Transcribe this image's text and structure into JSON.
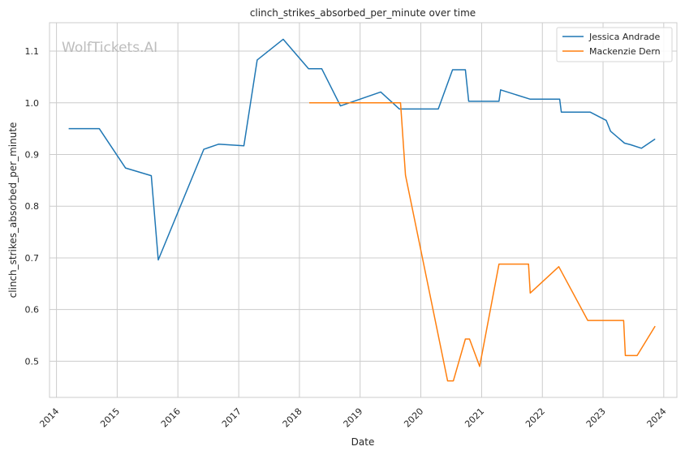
{
  "chart_data": {
    "type": "line",
    "title": "clinch_strikes_absorbed_per_minute over time",
    "xlabel": "Date",
    "ylabel": "clinch_strikes_absorbed_per_minute",
    "watermark": "WolfTickets.AI",
    "x_ticks": [
      "2014",
      "2015",
      "2016",
      "2017",
      "2018",
      "2019",
      "2020",
      "2021",
      "2022",
      "2023",
      "2024"
    ],
    "y_ticks": [
      "0.5",
      "0.6",
      "0.7",
      "0.8",
      "0.9",
      "1.0",
      "1.1"
    ],
    "xlim": [
      "2013-11-20",
      "2024-03-20"
    ],
    "ylim": [
      0.43,
      1.155
    ],
    "grid": true,
    "legend_position": "top-right",
    "series": [
      {
        "name": "Jessica Andrade",
        "color": "#1f77b4",
        "points": [
          [
            "2014-03-15",
            0.95
          ],
          [
            "2014-09-15",
            0.95
          ],
          [
            "2015-02-20",
            0.874
          ],
          [
            "2015-07-25",
            0.859
          ],
          [
            "2015-09-05",
            0.696
          ],
          [
            "2016-06-05",
            0.91
          ],
          [
            "2016-09-01",
            0.92
          ],
          [
            "2017-02-01",
            0.917
          ],
          [
            "2017-04-22",
            1.083
          ],
          [
            "2017-09-25",
            1.123
          ],
          [
            "2018-02-25",
            1.066
          ],
          [
            "2018-05-15",
            1.066
          ],
          [
            "2018-09-05",
            0.994
          ],
          [
            "2019-05-05",
            1.021
          ],
          [
            "2019-08-25",
            0.988
          ],
          [
            "2020-04-15",
            0.988
          ],
          [
            "2020-07-10",
            1.064
          ],
          [
            "2020-09-25",
            1.064
          ],
          [
            "2020-10-15",
            1.003
          ],
          [
            "2021-04-15",
            1.003
          ],
          [
            "2021-04-25",
            1.025
          ],
          [
            "2021-10-20",
            1.007
          ],
          [
            "2022-04-15",
            1.007
          ],
          [
            "2022-04-25",
            0.982
          ],
          [
            "2022-10-15",
            0.982
          ],
          [
            "2023-01-20",
            0.966
          ],
          [
            "2023-02-15",
            0.945
          ],
          [
            "2023-05-10",
            0.922
          ],
          [
            "2023-06-15",
            0.919
          ],
          [
            "2023-08-20",
            0.912
          ],
          [
            "2023-11-10",
            0.93
          ]
        ]
      },
      {
        "name": "Mackenzie Dern",
        "color": "#ff7f0e",
        "points": [
          [
            "2018-03-01",
            1.0
          ],
          [
            "2019-09-01",
            1.0
          ],
          [
            "2019-10-01",
            0.86
          ],
          [
            "2020-06-10",
            0.462
          ],
          [
            "2020-07-15",
            0.462
          ],
          [
            "2020-09-25",
            0.543
          ],
          [
            "2020-10-20",
            0.543
          ],
          [
            "2020-12-20",
            0.49
          ],
          [
            "2021-04-15",
            0.688
          ],
          [
            "2021-10-10",
            0.688
          ],
          [
            "2021-10-20",
            0.632
          ],
          [
            "2022-04-10",
            0.683
          ],
          [
            "2022-10-01",
            0.579
          ],
          [
            "2023-05-05",
            0.579
          ],
          [
            "2023-05-15",
            0.511
          ],
          [
            "2023-07-25",
            0.511
          ],
          [
            "2023-11-10",
            0.568
          ]
        ]
      }
    ]
  }
}
